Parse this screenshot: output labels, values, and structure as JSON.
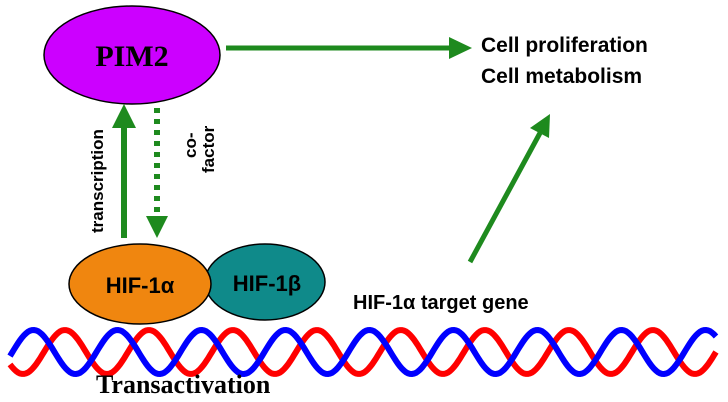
{
  "nodes": {
    "pim2": {
      "label": "PIM2",
      "color": "#cc00ff"
    },
    "hif1a": {
      "label": "HIF-1α",
      "color": "#f0860f"
    },
    "hif1b": {
      "label": "HIF-1β",
      "color": "#0f8a8a"
    }
  },
  "outcomes": {
    "line1": "Cell proliferation",
    "line2": "Cell metabolism"
  },
  "edges": {
    "transcription_label": "transcription",
    "cofactor_label_1": "co-",
    "cofactor_label_2": "factor",
    "arrow_color": "#1e8a1e"
  },
  "dna": {
    "target_gene_label": "HIF-1α target gene",
    "strand_colors": [
      "#ff0000",
      "#0000ff"
    ]
  },
  "caption": "Transactivation"
}
